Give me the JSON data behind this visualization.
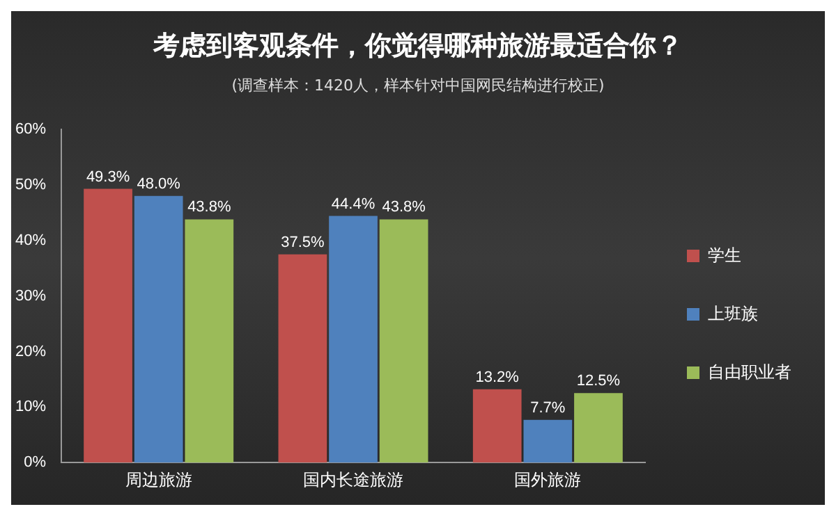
{
  "chart_data": {
    "type": "bar",
    "title": "考虑到客观条件，你觉得哪种旅游最适合你？",
    "subtitle": "(调查样本：1420人，样本针对中国网民结构进行校正)",
    "categories": [
      "周边旅游",
      "国内长途旅游",
      "国外旅游"
    ],
    "series": [
      {
        "name": "学生",
        "color": "#c0504d",
        "values": [
          49.3,
          37.5,
          13.2
        ]
      },
      {
        "name": "上班族",
        "color": "#4f81bd",
        "values": [
          48.0,
          44.4,
          7.7
        ]
      },
      {
        "name": "自由职业者",
        "color": "#9bbb59",
        "values": [
          43.8,
          43.8,
          12.5
        ]
      }
    ],
    "value_labels": [
      [
        "49.3%",
        "37.5%",
        "13.2%"
      ],
      [
        "48.0%",
        "44.4%",
        "7.7%"
      ],
      [
        "43.8%",
        "43.8%",
        "12.5%"
      ]
    ],
    "ylim": [
      0,
      60
    ],
    "yticks": [
      {
        "value": 0,
        "label": "0%"
      },
      {
        "value": 10,
        "label": "10%"
      },
      {
        "value": 20,
        "label": "20%"
      },
      {
        "value": 30,
        "label": "30%"
      },
      {
        "value": 40,
        "label": "40%"
      },
      {
        "value": 50,
        "label": "50%"
      },
      {
        "value": 60,
        "label": "60%"
      }
    ],
    "grid": false,
    "legend": "right"
  }
}
